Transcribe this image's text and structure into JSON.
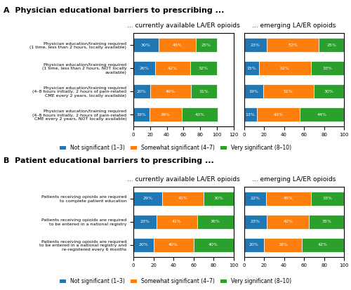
{
  "chart_data": [
    {
      "type": "bar",
      "orientation": "horizontal",
      "stacked": true,
      "data_labels": true,
      "title": "A  Physician educational barriers to prescribing ...",
      "subtitle": "... currently available LA/ER opioids",
      "legend": "lower center",
      "categories": [
        "Physician education/training required\n(1 time, less than 2 hours, locally available)",
        "Physician education/training required\n(1 time, less than 2 hours, NOT locally\navailable)",
        "Physician education/training required\n(4–8 hours initially, 2 hours of pain-related\nCME every 2 years, locally available)",
        "Physician education/training required\n(4–8 hours initially, 2 hours of pain-related\nCME every 2 years, NOT locally available)"
      ],
      "xlim": [
        0,
        120
      ],
      "xticks": [
        0,
        20,
        40,
        60,
        80,
        100,
        120
      ],
      "series": [
        {
          "name": "Not significant (1–3)",
          "values": [
            30,
            26,
            20,
            19
          ],
          "value_labels": [
            "30%",
            "26%",
            "20%",
            "19%"
          ]
        },
        {
          "name": "Somewhat significant (4–7)",
          "values": [
            45,
            42,
            49,
            39
          ],
          "value_labels": [
            "45%",
            "42%",
            "49%",
            "39%"
          ]
        },
        {
          "name": "Very significant (8–10)",
          "values": [
            25,
            32,
            31,
            43
          ],
          "value_labels": [
            "25%",
            "32%",
            "31%",
            "43%"
          ]
        }
      ]
    },
    {
      "type": "bar",
      "orientation": "horizontal",
      "stacked": true,
      "data_labels": true,
      "subtitle": "... emerging LA/ER opioids",
      "categories": [
        null,
        null,
        null,
        null
      ],
      "xlim": [
        0,
        100
      ],
      "xticks": [
        0,
        20,
        40,
        60,
        80,
        100
      ],
      "series": [
        {
          "name": "Not significant (1–3)",
          "values": [
            23,
            15,
            19,
            13
          ],
          "value_labels": [
            "23%",
            "15%",
            "19%",
            "13%"
          ]
        },
        {
          "name": "Somewhat significant (4–7)",
          "values": [
            52,
            52,
            51,
            43
          ],
          "value_labels": [
            "52%",
            "52%",
            "51%",
            "43%"
          ]
        },
        {
          "name": "Very significant (8–10)",
          "values": [
            25,
            33,
            30,
            44
          ],
          "value_labels": [
            "25%",
            "33%",
            "30%",
            "44%"
          ]
        }
      ]
    },
    {
      "type": "bar",
      "orientation": "horizontal",
      "stacked": true,
      "data_labels": true,
      "title": "B  Patient educational barriers to prescribing ...",
      "subtitle": "... currently available LA/ER opioids",
      "legend": "lower center",
      "categories": [
        "Patients receiving opioids are required\nto complete patient education",
        "Patients receiving opioids are required\nto be entered in a national registry",
        "Patients receiving opioids are required\nto be entered in a national registry and\nre-registered every 6 months"
      ],
      "xlim": [
        0,
        100
      ],
      "xticks": [
        0,
        20,
        40,
        60,
        80,
        100
      ],
      "series": [
        {
          "name": "Not significant (1–3)",
          "values": [
            29,
            23,
            20
          ],
          "value_labels": [
            "29%",
            "23%",
            "20%"
          ]
        },
        {
          "name": "Somewhat significant (4–7)",
          "values": [
            41,
            41,
            40
          ],
          "value_labels": [
            "41%",
            "41%",
            "40%"
          ]
        },
        {
          "name": "Very significant (8–10)",
          "values": [
            30,
            36,
            40
          ],
          "value_labels": [
            "30%",
            "36%",
            "40%"
          ]
        }
      ]
    },
    {
      "type": "bar",
      "orientation": "horizontal",
      "stacked": true,
      "data_labels": true,
      "subtitle": "... emerging LA/ER opioids",
      "categories": [
        null,
        null,
        null
      ],
      "xlim": [
        0,
        100
      ],
      "xticks": [
        0,
        20,
        40,
        60,
        80,
        100
      ],
      "series": [
        {
          "name": "Not significant (1–3)",
          "values": [
            22,
            23,
            20
          ],
          "value_labels": [
            "22%",
            "23%",
            "20%"
          ]
        },
        {
          "name": "Somewhat significant (4–7)",
          "values": [
            45,
            42,
            38
          ],
          "value_labels": [
            "45%",
            "42%",
            "38%"
          ]
        },
        {
          "name": "Very significant (8–10)",
          "values": [
            33,
            35,
            42
          ],
          "value_labels": [
            "33%",
            "35%",
            "42%"
          ]
        }
      ]
    }
  ]
}
